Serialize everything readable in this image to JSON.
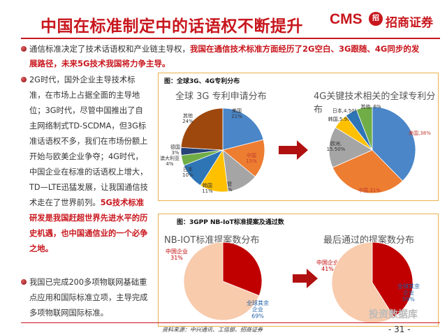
{
  "title": "中国在标准制定中的话语权不断提升",
  "logo": {
    "cms": "CMS",
    "badge": "招",
    "cn": "招商证券"
  },
  "lead": {
    "normal": "通信标准决定了技术话语权和产业链主导权，",
    "highlight": "我国在通信技术标准方面经历了2G空白、3G跟随、4G同步的发展路径，未来5G技术我国将力争主导。"
  },
  "left_col": {
    "normal": "2G时代，国外企业主导技术标准，在市场上占据全面的主导地位；3G时代，尽管中国推出了自主网络制式TD-SCDMA，但3G标准话语权不多，我们在市场份额上开始与欧美企业争夺；4G时代，中国企业在标准的话语权上增大，TD—LTE迅猛发展，让我国通信技术走在了世界前列。",
    "highlight": "5G技术标准研发是我国赶超世界先进水平的历史机遇，也中国通信业的一个必争之地。"
  },
  "left_col2": "我国已完成200多项物联网基础重点应用和国际标准立项，主导完成多项物联网国际标准。",
  "figure_a": {
    "caption": "图：全球3G、4G专利分布",
    "subtitle_3g": "全球 3G 专利申请分布",
    "subtitle_4g": "4G关键技术相关的全球专利分布"
  },
  "figure_b": {
    "caption": "图：3GPP NB-IoT标准提案及通过数",
    "subtitle_left": "NB-IOT标准提案数分布",
    "subtitle_right": "最后通过的提案数分布"
  },
  "chart_data": [
    {
      "type": "pie",
      "title": "全球 3G 专利申请分布",
      "labels": [
        "美国",
        "中国",
        "欧盟",
        "韩国",
        "日本",
        "澳大利亚",
        "德国",
        "其他"
      ],
      "label_texts": [
        "美国\n21%",
        "中国\n15%",
        "欧盟\n12%",
        "韩国\n11%",
        "日本\n10%",
        "澳大利亚\n4%",
        "德国\n3%",
        "其他\n24%"
      ],
      "values": [
        21,
        15,
        12,
        11,
        10,
        4,
        3,
        24
      ],
      "colors": [
        "#4a86c8",
        "#ed7d31",
        "#a5a5a5",
        "#ffc000",
        "#2e75b6",
        "#70ad47",
        "#264478",
        "#9e480e"
      ]
    },
    {
      "type": "pie",
      "title": "4G关键技术相关的全球专利分布",
      "labels": [
        "美国",
        "中国",
        "欧洲",
        "韩国",
        "日本",
        "其他"
      ],
      "label_texts": [
        "美国,38%",
        "中国,31%",
        "欧洲,\n15.50%",
        "韩国,5.90%",
        "日本,4.50%",
        "其他, 6%"
      ],
      "values": [
        38,
        31,
        15.5,
        5.9,
        4.5,
        6
      ],
      "colors": [
        "#4a86c8",
        "#ed7d31",
        "#a5a5a5",
        "#ffc000",
        "#2e75b6",
        "#70ad47"
      ]
    },
    {
      "type": "pie",
      "title": "NB-IOT标准提案数分布",
      "labels": [
        "中国企业",
        "全球其余企业"
      ],
      "label_texts": [
        "中国企业\n31%",
        "全球其余\n企业\n69%"
      ],
      "values": [
        31,
        69
      ],
      "colors": [
        "#c00000",
        "#f8cbad"
      ]
    },
    {
      "type": "pie",
      "title": "最后通过的提案数分布",
      "labels": [
        "中国企业",
        "全球其余企业"
      ],
      "label_texts": [
        "中国企业\n41%",
        "全球其余\n企业\n59%"
      ],
      "values": [
        41,
        59
      ],
      "colors": [
        "#c00000",
        "#f8cbad"
      ]
    }
  ],
  "source": "资料来源：中兴通讯、工信部、招商证券",
  "page_number": "- 31 -",
  "watermark": "投资数据库"
}
